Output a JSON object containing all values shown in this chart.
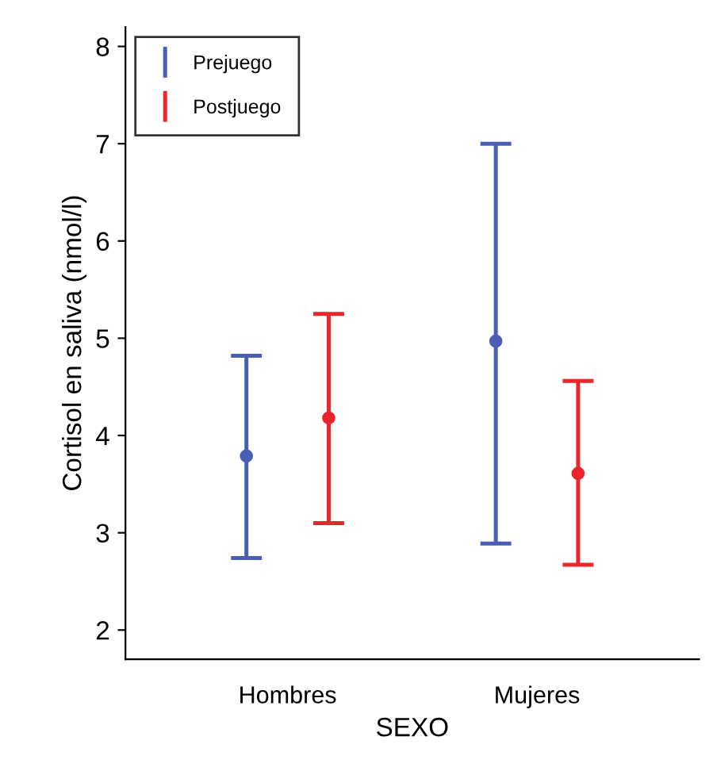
{
  "chart_data": {
    "type": "scatter",
    "categories": [
      "Hombres",
      "Mujeres"
    ],
    "series": [
      {
        "name": "Prejuego",
        "color": "#4a5fb4",
        "values": [
          3.79,
          4.97
        ],
        "errors": [
          [
            2.74,
            4.82
          ],
          [
            2.89,
            7.0
          ]
        ]
      },
      {
        "name": "Postjuego",
        "color": "#e8262b",
        "values": [
          4.18,
          3.61
        ],
        "errors": [
          [
            3.1,
            5.25
          ],
          [
            2.67,
            4.56
          ]
        ]
      }
    ],
    "xlabel": "SEXO",
    "ylabel": "Cortisol en saliva (nmol/l)",
    "ylim": [
      1.7,
      8.2
    ],
    "yticks": [
      2,
      3,
      4,
      5,
      6,
      7,
      8
    ],
    "marker": "circle",
    "legend": "top left",
    "grid": false
  }
}
